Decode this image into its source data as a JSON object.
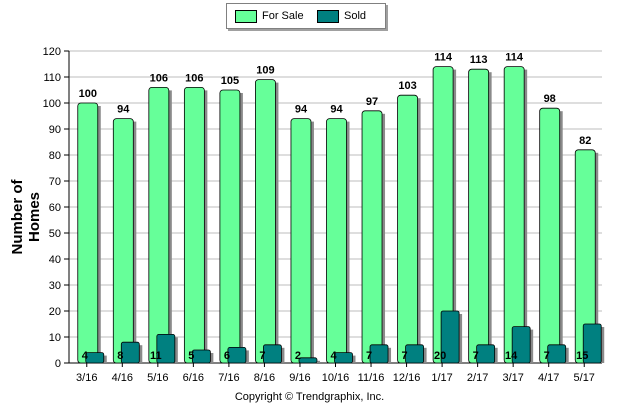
{
  "chart_data": {
    "type": "bar",
    "ylabel": "Number of Homes",
    "xlabel": "",
    "ylim": [
      0,
      120
    ],
    "ytick_step": 10,
    "grid": true,
    "legend_position": "top-center",
    "categories": [
      "3/16",
      "4/16",
      "5/16",
      "6/16",
      "7/16",
      "8/16",
      "9/16",
      "10/16",
      "11/16",
      "12/16",
      "1/17",
      "2/17",
      "3/17",
      "4/17",
      "5/17"
    ],
    "series": [
      {
        "name": "For Sale",
        "color": "#66ff99",
        "values": [
          100,
          94,
          106,
          106,
          105,
          109,
          94,
          94,
          97,
          103,
          114,
          113,
          114,
          98,
          82
        ]
      },
      {
        "name": "Sold",
        "color": "#008080",
        "values": [
          4,
          8,
          11,
          5,
          6,
          7,
          2,
          4,
          7,
          7,
          20,
          7,
          14,
          7,
          15
        ]
      }
    ]
  },
  "footer": {
    "copyright": "Copyright © Trendgraphix, Inc."
  }
}
